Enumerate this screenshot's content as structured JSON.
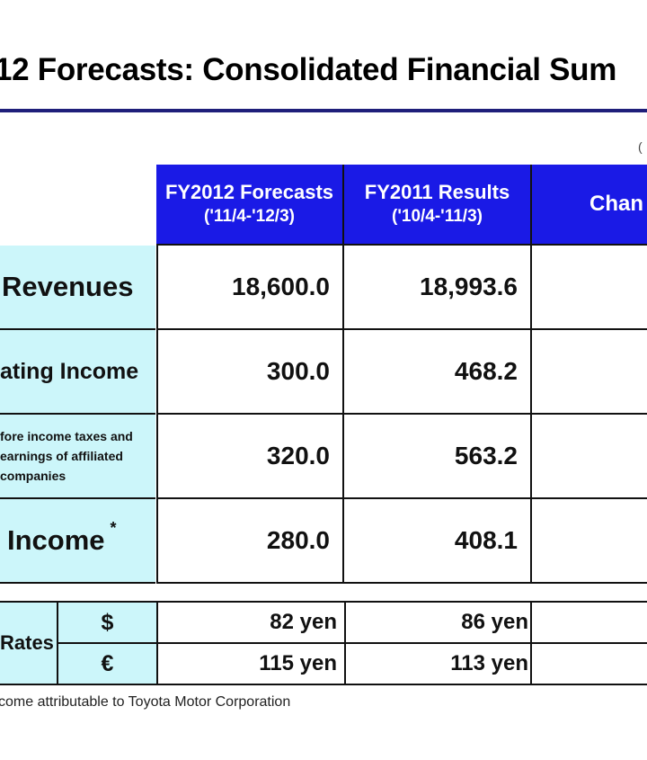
{
  "title": "12 Forecasts: Consolidated Financial Sum",
  "unit_note": "(",
  "columns": {
    "forecast": {
      "line1": "FY2012 Forecasts",
      "line2": "('11/4-'12/3)"
    },
    "results": {
      "line1": "FY2011 Results",
      "line2": "('10/4-'11/3)"
    },
    "change": "Chan"
  },
  "rows": [
    {
      "label": "Revenues",
      "forecast": "18,600.0",
      "results": "18,993.6"
    },
    {
      "label": "ating Income",
      "forecast": "300.0",
      "results": "468.2"
    },
    {
      "label_lines": [
        "fore income taxes and",
        "earnings of affiliated",
        "companies"
      ],
      "forecast": "320.0",
      "results": "563.2"
    },
    {
      "label": "Income",
      "label_mark": "*",
      "forecast": "280.0",
      "results": "408.1"
    }
  ],
  "rates": {
    "label": "Rates",
    "items": [
      {
        "currency": "$",
        "forecast": "82 yen",
        "results": "86 yen"
      },
      {
        "currency": "€",
        "forecast": "115 yen",
        "results": "113 yen"
      }
    ]
  },
  "footnote": "come attributable to Toyota Motor Corporation"
}
